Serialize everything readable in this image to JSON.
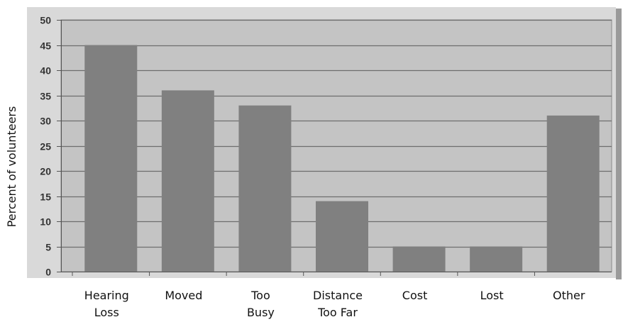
{
  "chart_data": {
    "type": "bar",
    "title": "",
    "xlabel": "",
    "ylabel": "Percent of volunteers",
    "categories": [
      [
        "Hearing",
        "Loss"
      ],
      [
        "Moved"
      ],
      [
        "Too",
        "Busy"
      ],
      [
        "Distance",
        "Too Far"
      ],
      [
        "Cost"
      ],
      [
        "Lost"
      ],
      [
        "Other"
      ]
    ],
    "values": [
      45,
      36,
      33,
      14,
      5,
      5,
      31
    ],
    "ylim": [
      0,
      50
    ],
    "yticks": [
      "0",
      "5",
      "10",
      "15",
      "20",
      "25",
      "30",
      "35",
      "40",
      "45",
      "50"
    ],
    "grid": true,
    "legend": "none",
    "colors": {
      "plot_background": "#c4c4c4",
      "bar": "#808080",
      "gridline": "#6e6e6e",
      "frame": "#d9d9d9",
      "shadow": "#9a9a9a"
    }
  }
}
